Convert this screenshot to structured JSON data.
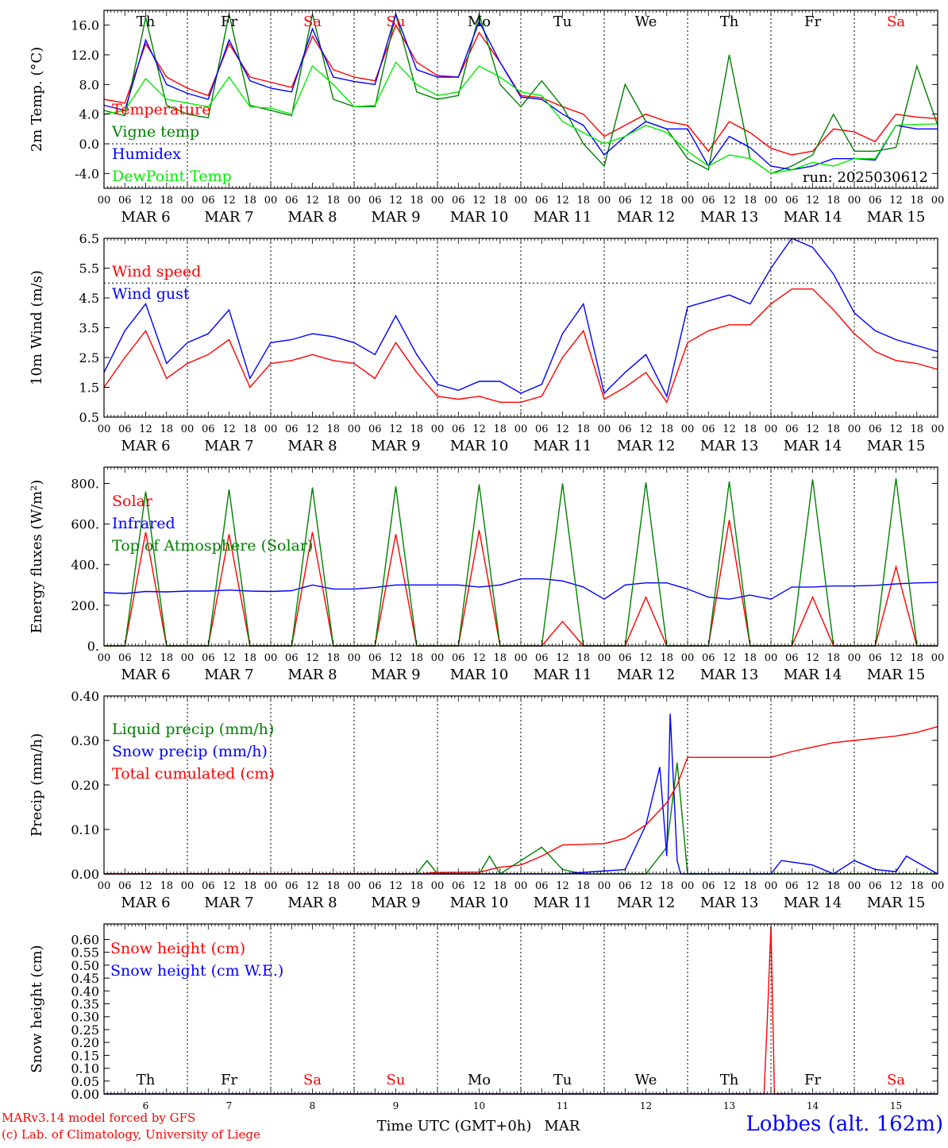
{
  "meta": {
    "x_days": [
      "6",
      "7",
      "8",
      "9",
      "10",
      "11",
      "12",
      "13",
      "14",
      "15"
    ],
    "weekdays": [
      "Th",
      "Fr",
      "Sa",
      "Su",
      "Mo",
      "Tu",
      "We",
      "Th",
      "Fr",
      "Sa"
    ],
    "weekday_colors": [
      "#000000",
      "#000000",
      "#ff0000",
      "#ff0000",
      "#000000",
      "#000000",
      "#000000",
      "#000000",
      "#000000",
      "#ff0000"
    ],
    "month": "MAR",
    "hour_ticks": [
      "00",
      "06",
      "12",
      "18"
    ],
    "last_hour_tick": "00",
    "run": "run: 2025030612",
    "x_axis_title": "Time UTC (GMT+0h)",
    "x_axis_month": "MAR",
    "station": "Lobbes (alt. 162m)",
    "credit_line1": "MARv3.14 model forced by GFS",
    "credit_line2": "(c) Lab. of Climatology, University of Liege"
  },
  "chart_data": [
    {
      "id": "temperature",
      "type": "line",
      "ylabel": "2m Temp. (°C)",
      "ylim": [
        -6,
        18
      ],
      "yticks": [
        -4,
        0,
        4,
        8,
        12,
        16
      ],
      "ytick_labels": [
        "-4.0",
        "0.0",
        "4.0",
        "8.0",
        "12.0",
        "16.0"
      ],
      "ref_line": 0,
      "x_unit": "hours since MAR 6 00 UTC",
      "series": [
        {
          "name": "Temperature",
          "color": "#ff0000",
          "x": [
            0,
            6,
            12,
            18,
            24,
            30,
            36,
            42,
            48,
            54,
            60,
            66,
            72,
            78,
            84,
            90,
            96,
            102,
            108,
            114,
            120,
            126,
            132,
            138,
            144,
            150,
            156,
            162,
            168,
            174,
            180,
            186,
            192,
            198,
            204,
            210,
            216,
            222,
            228,
            234,
            240
          ],
          "y": [
            6.0,
            5.5,
            13.5,
            9.0,
            7.5,
            6.5,
            13.5,
            9.0,
            8.3,
            7.6,
            14.5,
            10.0,
            9.0,
            8.5,
            16.0,
            11.0,
            9.2,
            9.0,
            15.0,
            11.0,
            6.5,
            6.2,
            5.0,
            4.0,
            1.0,
            2.5,
            4.0,
            3.0,
            2.5,
            -1.0,
            3.0,
            1.5,
            -0.6,
            -1.5,
            -1.0,
            2.0,
            1.6,
            0.3,
            4.0,
            3.6,
            3.4
          ]
        },
        {
          "name": "Vigne temp",
          "color": "#008000",
          "x": [
            0,
            6,
            12,
            18,
            24,
            30,
            36,
            42,
            48,
            54,
            60,
            66,
            72,
            78,
            84,
            90,
            96,
            102,
            108,
            114,
            120,
            126,
            132,
            138,
            144,
            150,
            156,
            162,
            168,
            174,
            180,
            186,
            192,
            198,
            204,
            210,
            216,
            222,
            228,
            234,
            240
          ],
          "y": [
            4.5,
            3.8,
            17.0,
            5.2,
            4.0,
            3.5,
            17.5,
            5.2,
            4.5,
            3.8,
            17.5,
            6.0,
            5.0,
            5.0,
            17.5,
            7.0,
            6.0,
            6.5,
            17.5,
            8.0,
            5.0,
            8.5,
            5.0,
            0.0,
            -3.0,
            8.0,
            3.0,
            2.0,
            -2.0,
            -3.5,
            12.0,
            -2.0,
            -4.0,
            -3.0,
            -1.5,
            4.0,
            -1.0,
            -1.0,
            -0.5,
            10.5,
            2.5
          ]
        },
        {
          "name": "Humidex",
          "color": "#0000ff",
          "x": [
            0,
            6,
            12,
            18,
            24,
            30,
            36,
            42,
            48,
            54,
            60,
            66,
            72,
            78,
            84,
            90,
            96,
            102,
            108,
            114,
            120,
            126,
            132,
            138,
            144,
            150,
            156,
            162,
            168,
            174,
            180,
            186,
            192,
            198,
            204,
            210,
            216,
            222,
            228,
            234,
            240
          ],
          "y": [
            5.2,
            4.5,
            14.0,
            8.0,
            6.8,
            6.0,
            14.0,
            8.5,
            7.5,
            7.0,
            15.5,
            9.0,
            8.4,
            8.0,
            17.5,
            10.0,
            9.0,
            9.0,
            16.5,
            11.0,
            6.3,
            6.0,
            4.0,
            2.5,
            -1.5,
            1.0,
            3.0,
            2.0,
            2.0,
            -3.0,
            1.0,
            -0.5,
            -3.0,
            -3.5,
            -3.0,
            -2.0,
            -2.0,
            -2.2,
            2.5,
            2.0,
            2.0
          ]
        },
        {
          "name": "DewPoint Temp",
          "color": "#00ee00",
          "x": [
            0,
            6,
            12,
            18,
            24,
            30,
            36,
            42,
            48,
            54,
            60,
            66,
            72,
            78,
            84,
            90,
            96,
            102,
            108,
            114,
            120,
            126,
            132,
            138,
            144,
            150,
            156,
            162,
            168,
            174,
            180,
            186,
            192,
            198,
            204,
            210,
            216,
            222,
            228,
            234,
            240
          ],
          "y": [
            4.0,
            4.5,
            8.8,
            6.0,
            5.5,
            5.0,
            9.0,
            5.0,
            4.8,
            4.0,
            10.5,
            8.0,
            5.0,
            5.2,
            11.0,
            8.0,
            6.5,
            7.0,
            10.5,
            9.0,
            7.0,
            6.5,
            3.0,
            1.5,
            0.0,
            1.0,
            2.5,
            1.5,
            -1.0,
            -3.0,
            -1.5,
            -2.0,
            -4.0,
            -3.5,
            -2.5,
            -3.0,
            -2.0,
            -2.0,
            2.5,
            2.6,
            2.7
          ]
        }
      ]
    },
    {
      "id": "wind",
      "type": "line",
      "ylabel": "10m Wind (m/s)",
      "ylim": [
        0.5,
        6.5
      ],
      "yticks": [
        0.5,
        1.5,
        2.5,
        3.5,
        4.5,
        5.5,
        6.5
      ],
      "ytick_labels": [
        "0.5",
        "1.5",
        "2.5",
        "3.5",
        "4.5",
        "5.5",
        "6.5"
      ],
      "ref_line": 5.0,
      "x_unit": "hours since MAR 6 00 UTC",
      "series": [
        {
          "name": "Wind speed",
          "color": "#ff0000",
          "x": [
            0,
            6,
            12,
            18,
            24,
            30,
            36,
            42,
            48,
            54,
            60,
            66,
            72,
            78,
            84,
            90,
            96,
            102,
            108,
            114,
            120,
            126,
            132,
            138,
            144,
            150,
            156,
            162,
            168,
            174,
            180,
            186,
            192,
            198,
            204,
            210,
            216,
            222,
            228,
            234,
            240
          ],
          "y": [
            1.5,
            2.5,
            3.4,
            1.8,
            2.3,
            2.6,
            3.1,
            1.5,
            2.3,
            2.4,
            2.6,
            2.4,
            2.3,
            1.8,
            3.0,
            2.0,
            1.2,
            1.1,
            1.2,
            1.0,
            1.0,
            1.2,
            2.5,
            3.4,
            1.1,
            1.5,
            2.0,
            1.0,
            3.0,
            3.4,
            3.6,
            3.6,
            4.3,
            4.8,
            4.8,
            4.1,
            3.3,
            2.7,
            2.4,
            2.3,
            2.1
          ]
        },
        {
          "name": "Wind gust",
          "color": "#0000ff",
          "x": [
            0,
            6,
            12,
            18,
            24,
            30,
            36,
            42,
            48,
            54,
            60,
            66,
            72,
            78,
            84,
            90,
            96,
            102,
            108,
            114,
            120,
            126,
            132,
            138,
            144,
            150,
            156,
            162,
            168,
            174,
            180,
            186,
            192,
            198,
            204,
            210,
            216,
            222,
            228,
            234,
            240
          ],
          "y": [
            2.0,
            3.4,
            4.3,
            2.3,
            3.0,
            3.3,
            4.1,
            1.8,
            3.0,
            3.1,
            3.3,
            3.2,
            3.0,
            2.6,
            3.9,
            2.6,
            1.6,
            1.4,
            1.7,
            1.7,
            1.3,
            1.6,
            3.3,
            4.3,
            1.3,
            2.0,
            2.6,
            1.2,
            4.2,
            4.4,
            4.6,
            4.3,
            5.5,
            6.5,
            6.2,
            5.3,
            4.0,
            3.4,
            3.1,
            2.9,
            2.7
          ]
        }
      ]
    },
    {
      "id": "energy",
      "type": "line",
      "ylabel": "Energy fluxes (W/m²)",
      "ylim": [
        0,
        880
      ],
      "yticks": [
        0,
        200,
        400,
        600,
        800
      ],
      "ytick_labels": [
        "0.",
        "200.",
        "400.",
        "600.",
        "800."
      ],
      "x_unit": "hours since MAR 6 00 UTC",
      "series": [
        {
          "name": "Solar",
          "color": "#ff0000",
          "x": [
            0,
            6,
            12,
            18,
            24,
            30,
            36,
            42,
            48,
            54,
            60,
            66,
            72,
            78,
            84,
            90,
            96,
            102,
            108,
            114,
            120,
            126,
            132,
            138,
            144,
            150,
            156,
            162,
            168,
            174,
            180,
            186,
            192,
            198,
            204,
            210,
            216,
            222,
            228,
            234,
            240
          ],
          "y": [
            0,
            0,
            560,
            0,
            0,
            0,
            550,
            0,
            0,
            0,
            560,
            0,
            0,
            0,
            550,
            0,
            0,
            0,
            570,
            0,
            0,
            0,
            120,
            0,
            0,
            0,
            240,
            0,
            0,
            0,
            620,
            0,
            0,
            0,
            240,
            0,
            0,
            0,
            390,
            0,
            0
          ]
        },
        {
          "name": "Infrared",
          "color": "#0000ff",
          "x": [
            0,
            6,
            12,
            18,
            24,
            30,
            36,
            42,
            48,
            54,
            60,
            66,
            72,
            78,
            84,
            90,
            96,
            102,
            108,
            114,
            120,
            126,
            132,
            138,
            144,
            150,
            156,
            162,
            168,
            174,
            180,
            186,
            192,
            198,
            204,
            210,
            216,
            222,
            228,
            234,
            240
          ],
          "y": [
            262,
            258,
            268,
            266,
            270,
            270,
            275,
            270,
            268,
            272,
            300,
            280,
            280,
            288,
            300,
            300,
            300,
            300,
            290,
            300,
            330,
            330,
            320,
            290,
            230,
            300,
            310,
            310,
            280,
            240,
            230,
            250,
            230,
            290,
            290,
            295,
            295,
            298,
            305,
            310,
            312
          ]
        },
        {
          "name": "Top of Atmosphere (Solar)",
          "color": "#008000",
          "x": [
            0,
            6,
            12,
            18,
            24,
            30,
            36,
            42,
            48,
            54,
            60,
            66,
            72,
            78,
            84,
            90,
            96,
            102,
            108,
            114,
            120,
            126,
            132,
            138,
            144,
            150,
            156,
            162,
            168,
            174,
            180,
            186,
            192,
            198,
            204,
            210,
            216,
            222,
            228,
            234,
            240
          ],
          "y": [
            0,
            0,
            760,
            0,
            0,
            0,
            770,
            0,
            0,
            0,
            780,
            0,
            0,
            0,
            785,
            0,
            0,
            0,
            795,
            0,
            0,
            0,
            800,
            0,
            0,
            0,
            805,
            0,
            0,
            0,
            810,
            0,
            0,
            0,
            820,
            0,
            0,
            0,
            825,
            0,
            0
          ]
        }
      ]
    },
    {
      "id": "precip",
      "type": "line",
      "ylabel": "Precip (mm/h)",
      "ylim": [
        0,
        0.4
      ],
      "yticks": [
        0,
        0.1,
        0.2,
        0.3,
        0.4
      ],
      "ytick_labels": [
        "0.00",
        "0.10",
        "0.20",
        "0.30",
        "0.40"
      ],
      "x_unit": "hours since MAR 6 00 UTC",
      "series": [
        {
          "name": "Liquid precip (mm/h)",
          "color": "#008000",
          "x": [
            0,
            80,
            90,
            93,
            96,
            108,
            111,
            114,
            126,
            132,
            138,
            144,
            156,
            162,
            165,
            168,
            240
          ],
          "y": [
            0,
            0,
            0,
            0.03,
            0,
            0,
            0.04,
            0,
            0.06,
            0.01,
            0.0,
            0,
            0,
            0.06,
            0.25,
            0,
            0
          ]
        },
        {
          "name": "Snow precip (mm/h)",
          "color": "#0000ff",
          "x": [
            0,
            96,
            132,
            150,
            156,
            160,
            162,
            163,
            165,
            166,
            168,
            192,
            195,
            204,
            210,
            216,
            222,
            228,
            231,
            240
          ],
          "y": [
            0,
            0,
            0,
            0.01,
            0.11,
            0.24,
            0.04,
            0.36,
            0.03,
            0,
            0,
            0,
            0.03,
            0.02,
            0.0,
            0.03,
            0.01,
            0.005,
            0.04,
            0
          ]
        },
        {
          "name": "Total cumulated (cm)",
          "color": "#ff0000",
          "x": [
            0,
            90,
            96,
            108,
            114,
            120,
            126,
            132,
            144,
            150,
            156,
            162,
            165,
            168,
            180,
            192,
            198,
            204,
            210,
            216,
            222,
            228,
            234,
            240
          ],
          "y": [
            0,
            0,
            0.003,
            0.004,
            0.015,
            0.02,
            0.04,
            0.065,
            0.068,
            0.08,
            0.11,
            0.16,
            0.2,
            0.262,
            0.262,
            0.262,
            0.275,
            0.285,
            0.295,
            0.3,
            0.305,
            0.31,
            0.318,
            0.331
          ]
        }
      ]
    },
    {
      "id": "snow",
      "type": "line",
      "ylabel": "Snow height (cm)",
      "ylim": [
        0,
        0.66
      ],
      "yticks": [
        0,
        0.05,
        0.1,
        0.15,
        0.2,
        0.25,
        0.3,
        0.35,
        0.4,
        0.45,
        0.5,
        0.55,
        0.6
      ],
      "ytick_labels": [
        "0.00",
        "0.05",
        "0.10",
        "0.15",
        "0.20",
        "0.25",
        "0.30",
        "0.35",
        "0.40",
        "0.45",
        "0.50",
        "0.55",
        "0.60"
      ],
      "x_unit": "hours since MAR 6 00 UTC",
      "series": [
        {
          "name": "Snow height (cm)",
          "color": "#ff0000",
          "x": [
            0,
            190,
            191,
            192,
            193,
            240
          ],
          "y": [
            0,
            0,
            0.3,
            0.65,
            0,
            0
          ]
        },
        {
          "name": "Snow height (cm W.E.)",
          "color": "#0000ff",
          "x": [
            0,
            240
          ],
          "y": [
            0,
            0
          ]
        }
      ]
    }
  ]
}
